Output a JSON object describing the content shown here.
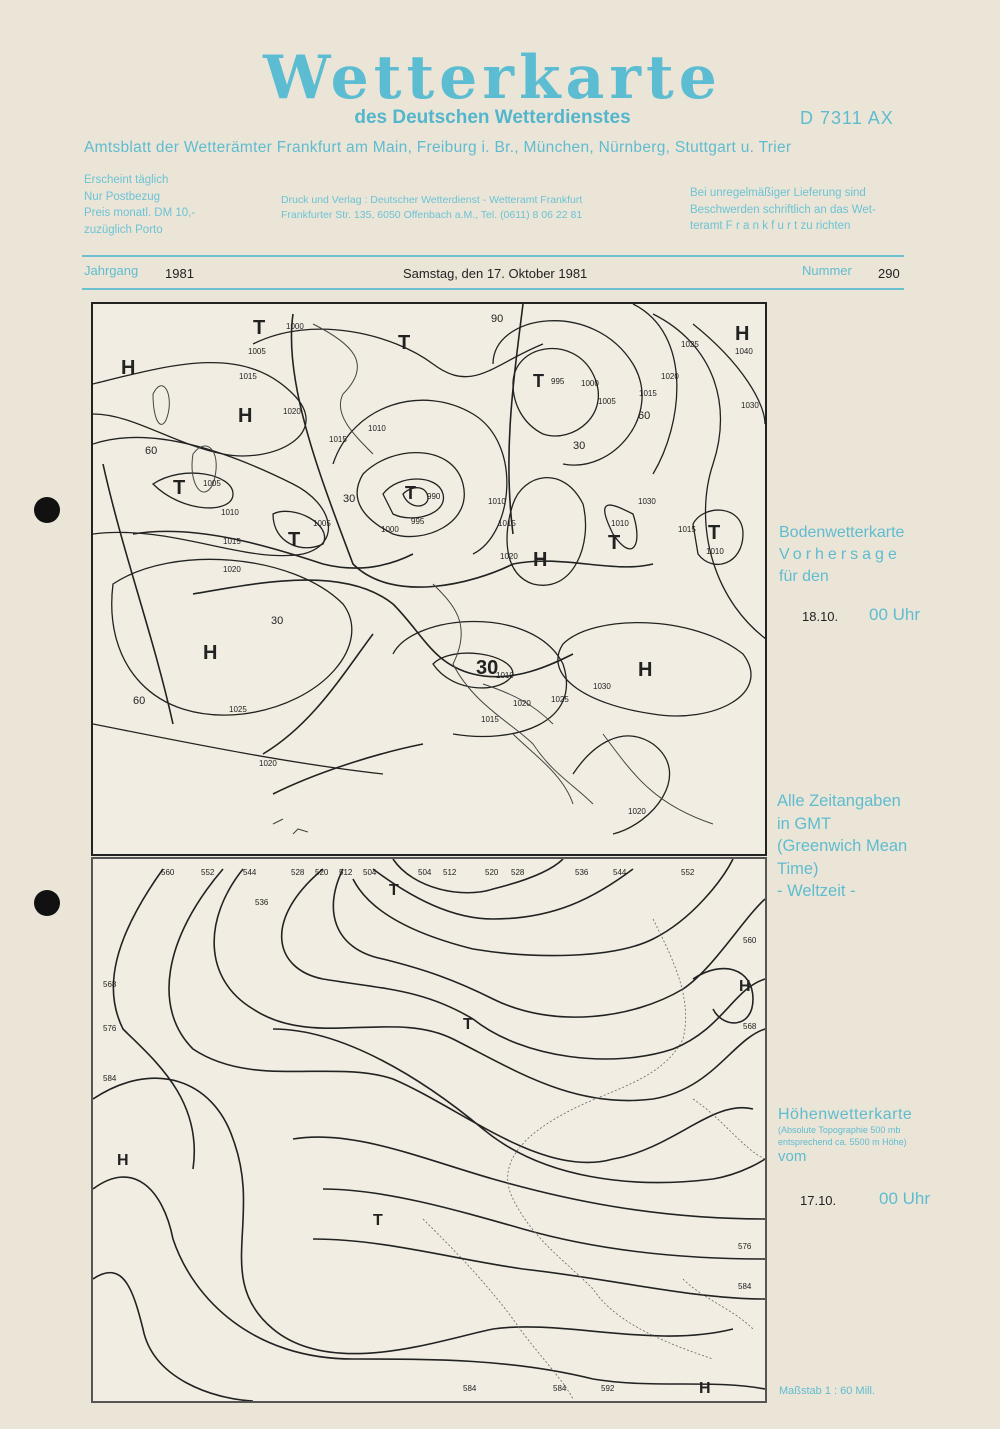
{
  "header": {
    "title": "Wetterkarte",
    "subtitle": "des Deutschen Wetterdienstes",
    "code": "D 7311 AX",
    "amtsblatt": "Amtsblatt der Wetterämter Frankfurt am Main, Freiburg i. Br., München, Nürnberg, Stuttgart u. Trier",
    "left_info": [
      "Erscheint täglich",
      "Nur Postbezug",
      "Preis monatl. DM 10,-",
      "zuzüglich Porto"
    ],
    "center_info": [
      "Druck und Verlag : Deutscher Wetterdienst  - Wetteramt Frankfurt",
      "Frankfurter Str. 135, 6050 Offenbach a.M., Tel. (0611) 8 06 22 81"
    ],
    "right_info": [
      "Bei unregelmäßiger Lieferung sind",
      "Beschwerden schriftlich an das Wet-",
      "teramt  F r a n k f u r t  zu richten"
    ],
    "jahrgang_label": "Jahrgang",
    "jahrgang": "1981",
    "date": "Samstag, den 17. Oktober 1981",
    "nummer_label": "Nummer",
    "nummer": "290"
  },
  "surface_map": {
    "caption": [
      "Bodenwetterkarte",
      "Vorhersage",
      "für den"
    ],
    "date": "18.10.",
    "time": "00 Uhr",
    "labels": [
      "H",
      "T",
      "H",
      "T",
      "T",
      "T",
      "H",
      "T",
      "T",
      "H",
      "T",
      "H",
      "H",
      "T",
      "1000",
      "1005",
      "1015",
      "1020",
      "1015",
      "1010",
      "1005",
      "1010",
      "1015",
      "1020",
      "1005",
      "1000",
      "995",
      "990",
      "1010",
      "1015",
      "1020",
      "1010",
      "1015",
      "1010",
      "1025",
      "1020",
      "1015",
      "1030",
      "1040",
      "1030",
      "1025",
      "1020",
      "1025",
      "1030",
      "1020",
      "1010",
      "1015",
      "1020",
      "995",
      "1000",
      "1005",
      "60",
      "30",
      "30",
      "60",
      "30",
      "30",
      "60",
      "90"
    ]
  },
  "upper_map": {
    "caption": [
      "Höhenwetterkarte",
      "(Absolute Topographie 500 mb",
      "entsprechend ca. 5500 m Höhe)",
      "vom"
    ],
    "date": "17.10.",
    "time": "00 Uhr",
    "labels": [
      "560",
      "552",
      "544",
      "536",
      "528",
      "520",
      "512",
      "504",
      "504",
      "512",
      "520",
      "528",
      "536",
      "544",
      "552",
      "560",
      "568",
      "576",
      "584",
      "568",
      "576",
      "584",
      "584",
      "592",
      "584",
      "H",
      "T",
      "T",
      "T",
      "H",
      "H"
    ]
  },
  "note": [
    "Alle Zeitangaben",
    "in GMT",
    "(Greenwich Mean",
    "Time)",
    "- Weltzeit -"
  ],
  "scale": "Maßstab 1 : 60 Mill."
}
